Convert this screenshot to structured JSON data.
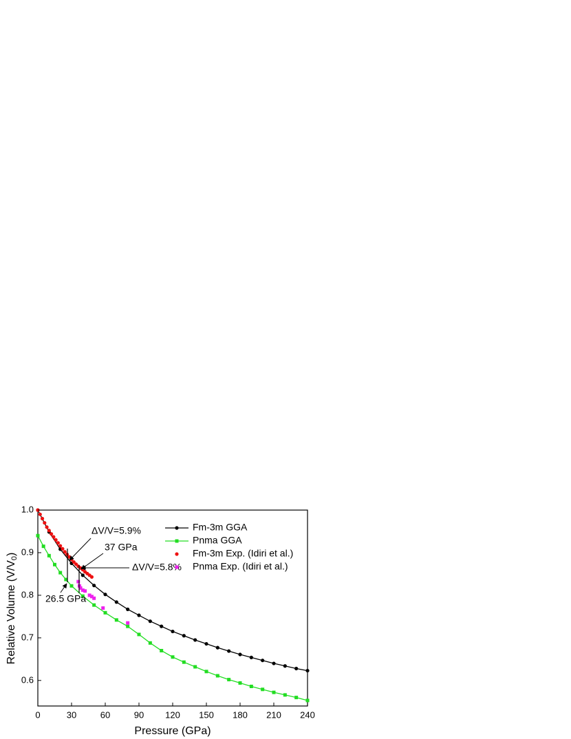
{
  "chart_data": {
    "type": "line",
    "x_label": "Pressure (GPa)",
    "y_label": {
      "text": "Relative Volume (V/V",
      "sub": "0",
      "end": ")"
    },
    "xlim": [
      0,
      240
    ],
    "ylim": [
      0.54,
      1.0
    ],
    "xticks": [
      0,
      30,
      60,
      90,
      120,
      150,
      180,
      210,
      240
    ],
    "yticks": [
      0.6,
      0.7,
      0.8,
      0.9,
      {
        "value": 1,
        "label": "1.0"
      }
    ],
    "series": [
      {
        "name": "Fm-3m GGA",
        "color": "#000000",
        "marker": "circle",
        "line": true,
        "x": [
          0,
          10,
          20,
          30,
          40,
          50,
          60,
          70,
          80,
          90,
          100,
          110,
          120,
          130,
          140,
          150,
          160,
          170,
          180,
          190,
          200,
          210,
          220,
          230,
          240
        ],
        "values": [
          1.0,
          0.9486,
          0.9081,
          0.875,
          0.847,
          0.823,
          0.802,
          0.784,
          0.767,
          0.753,
          0.739,
          0.727,
          0.715,
          0.705,
          0.695,
          0.686,
          0.677,
          0.669,
          0.661,
          0.654,
          0.647,
          0.64,
          0.634,
          0.628,
          0.623
        ]
      },
      {
        "name": "Pnma GGA",
        "color": "#22dd22",
        "marker": "square",
        "line": true,
        "x": [
          0,
          5,
          10,
          15,
          20,
          25,
          30,
          40,
          50,
          60,
          70,
          80,
          90,
          100,
          110,
          120,
          130,
          140,
          150,
          160,
          170,
          180,
          190,
          200,
          210,
          220,
          230,
          240
        ],
        "values": [
          0.94,
          0.915,
          0.893,
          0.872,
          0.853,
          0.837,
          0.822,
          0.798,
          0.777,
          0.759,
          0.742,
          0.727,
          0.708,
          0.688,
          0.67,
          0.655,
          0.643,
          0.632,
          0.621,
          0.611,
          0.602,
          0.594,
          0.586,
          0.579,
          0.572,
          0.566,
          0.56,
          0.553
        ]
      },
      {
        "name": "Fm-3m Exp. (Idiri et al.)",
        "color": "#ee1111",
        "marker": "circle",
        "line": false,
        "x": [
          0,
          2,
          4,
          6,
          8,
          10,
          12,
          14,
          16,
          18,
          20,
          22,
          24,
          26,
          28,
          30,
          32,
          34,
          36,
          38,
          40,
          42,
          44,
          46,
          48
        ],
        "values": [
          1.0,
          0.99,
          0.98,
          0.97,
          0.96,
          0.952,
          0.944,
          0.937,
          0.93,
          0.923,
          0.916,
          0.909,
          0.902,
          0.896,
          0.89,
          0.884,
          0.878,
          0.873,
          0.868,
          0.864,
          0.86,
          0.855,
          0.851,
          0.847,
          0.843
        ]
      },
      {
        "name": "Pnma Exp. (Idiri et al.)",
        "color": "#ee22ee",
        "marker": "square",
        "line": false,
        "x": [
          36,
          37,
          38,
          40,
          42,
          46,
          48,
          50,
          58,
          80
        ],
        "values": [
          0.832,
          0.822,
          0.817,
          0.812,
          0.81,
          0.8,
          0.797,
          0.793,
          0.77,
          0.735
        ]
      }
    ],
    "annotations": [
      "ΔV/V=5.9%",
      "37 GPa",
      "ΔV/V=5.8%",
      "26.5 GPa"
    ]
  }
}
